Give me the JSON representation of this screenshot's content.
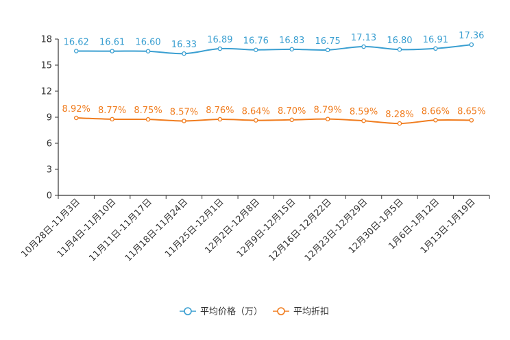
{
  "chart_data": {
    "type": "line",
    "title": "",
    "xlabel": "",
    "ylabel": "",
    "ylim": [
      0,
      18
    ],
    "yticks": [
      0,
      3,
      6,
      9,
      12,
      15,
      18
    ],
    "grid": false,
    "legend_position": "bottom-center",
    "categories": [
      "10月28日-11月3日",
      "11月4日-11月10日",
      "11月11日-11月17日",
      "11月18日-11月24日",
      "11月25日-12月1日",
      "12月2日-12月8日",
      "12月9日-12月15日",
      "12月16日-12月22日",
      "12月23日-12月29日",
      "12月30日-1月5日",
      "1月6日-1月12日",
      "1月13日-1月19日"
    ],
    "series": [
      {
        "name": "平均价格（万）",
        "color": "#3a9fd1",
        "values": [
          16.62,
          16.61,
          16.6,
          16.33,
          16.89,
          16.76,
          16.83,
          16.75,
          17.13,
          16.8,
          16.91,
          17.36
        ],
        "labels": [
          "16.62",
          "16.61",
          "16.60",
          "16.33",
          "16.89",
          "16.76",
          "16.83",
          "16.75",
          "17.13",
          "16.80",
          "16.91",
          "17.36"
        ]
      },
      {
        "name": "平均折扣",
        "color": "#f07c1e",
        "values": [
          8.92,
          8.77,
          8.75,
          8.57,
          8.76,
          8.64,
          8.7,
          8.79,
          8.59,
          8.28,
          8.66,
          8.65
        ],
        "labels": [
          "8.92%",
          "8.77%",
          "8.75%",
          "8.57%",
          "8.76%",
          "8.64%",
          "8.70%",
          "8.79%",
          "8.59%",
          "8.28%",
          "8.66%",
          "8.65%"
        ]
      }
    ]
  }
}
